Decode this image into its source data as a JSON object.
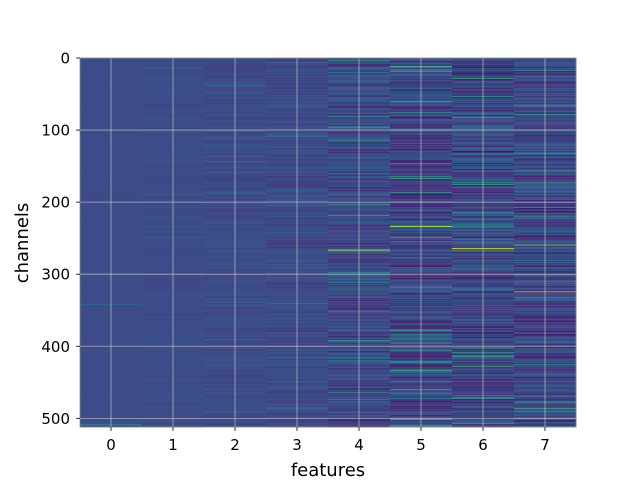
{
  "chart_data": {
    "type": "heatmap",
    "xlabel": "features",
    "ylabel": "channels",
    "x_ticks": [
      "0",
      "1",
      "2",
      "3",
      "4",
      "5",
      "6",
      "7"
    ],
    "y_ticks": [
      "0",
      "100",
      "200",
      "300",
      "400",
      "500"
    ],
    "x_range": [
      -0.5,
      7.5
    ],
    "y_range": [
      0,
      512
    ],
    "y_inverted": true,
    "grid": true,
    "colormap": "viridis",
    "n_channels": 512,
    "n_features": 8,
    "column_intensity": [
      0.02,
      0.04,
      0.08,
      0.12,
      0.22,
      0.26,
      0.28,
      0.26
    ],
    "highlights": [
      {
        "feature": 0,
        "channel": 341,
        "value": 0.35
      },
      {
        "feature": 0,
        "channel": 508,
        "value": 0.45
      },
      {
        "feature": 4,
        "channel": 266,
        "value": 0.95
      },
      {
        "feature": 4,
        "channel": 3,
        "value": 0.55
      },
      {
        "feature": 4,
        "channel": 392,
        "value": 0.6
      },
      {
        "feature": 5,
        "channel": 16,
        "value": 0.65
      },
      {
        "feature": 5,
        "channel": 233,
        "value": 0.85
      },
      {
        "feature": 5,
        "channel": 186,
        "value": 0.6
      },
      {
        "feature": 5,
        "channel": 433,
        "value": 0.62
      },
      {
        "feature": 6,
        "channel": 264,
        "value": 1.0
      },
      {
        "feature": 6,
        "channel": 281,
        "value": 0.55
      },
      {
        "feature": 6,
        "channel": 468,
        "value": 0.55
      },
      {
        "feature": 7,
        "channel": 259,
        "value": 0.88
      },
      {
        "feature": 7,
        "channel": 324,
        "value": 0.9
      },
      {
        "feature": 7,
        "channel": 65,
        "value": 0.6
      },
      {
        "feature": 7,
        "channel": 137,
        "value": 0.55
      },
      {
        "feature": 7,
        "channel": 477,
        "value": 0.55
      }
    ]
  }
}
